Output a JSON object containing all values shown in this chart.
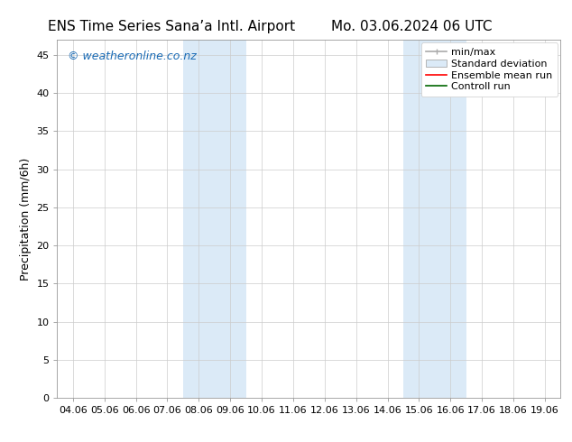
{
  "title_left": "ENS Time Series Sana’a Intl. Airport",
  "title_right": "Mo. 03.06.2024 06 UTC",
  "ylabel": "Precipitation (mm/6h)",
  "watermark": "© weatheronline.co.nz",
  "x_tick_labels": [
    "04.06",
    "05.06",
    "06.06",
    "07.06",
    "08.06",
    "09.06",
    "10.06",
    "11.06",
    "12.06",
    "13.06",
    "14.06",
    "15.06",
    "16.06",
    "17.06",
    "18.06",
    "19.06"
  ],
  "x_tick_values": [
    0,
    1,
    2,
    3,
    4,
    5,
    6,
    7,
    8,
    9,
    10,
    11,
    12,
    13,
    14,
    15
  ],
  "ylim": [
    0,
    47
  ],
  "yticks": [
    0,
    5,
    10,
    15,
    20,
    25,
    30,
    35,
    40,
    45
  ],
  "shaded_regions": [
    {
      "x_start": 4,
      "x_end": 5,
      "color": "#dbeaf7"
    },
    {
      "x_start": 5,
      "x_end": 6,
      "color": "#dbeaf7"
    },
    {
      "x_start": 11,
      "x_end": 12,
      "color": "#dbeaf7"
    },
    {
      "x_start": 12,
      "x_end": 13,
      "color": "#dbeaf7"
    }
  ],
  "background_color": "#ffffff",
  "plot_bg_color": "#ffffff",
  "grid_color": "#cccccc",
  "watermark_color": "#1a6bb5",
  "title_fontsize": 11,
  "tick_fontsize": 8,
  "ylabel_fontsize": 9,
  "legend_fontsize": 8,
  "watermark_fontsize": 9
}
